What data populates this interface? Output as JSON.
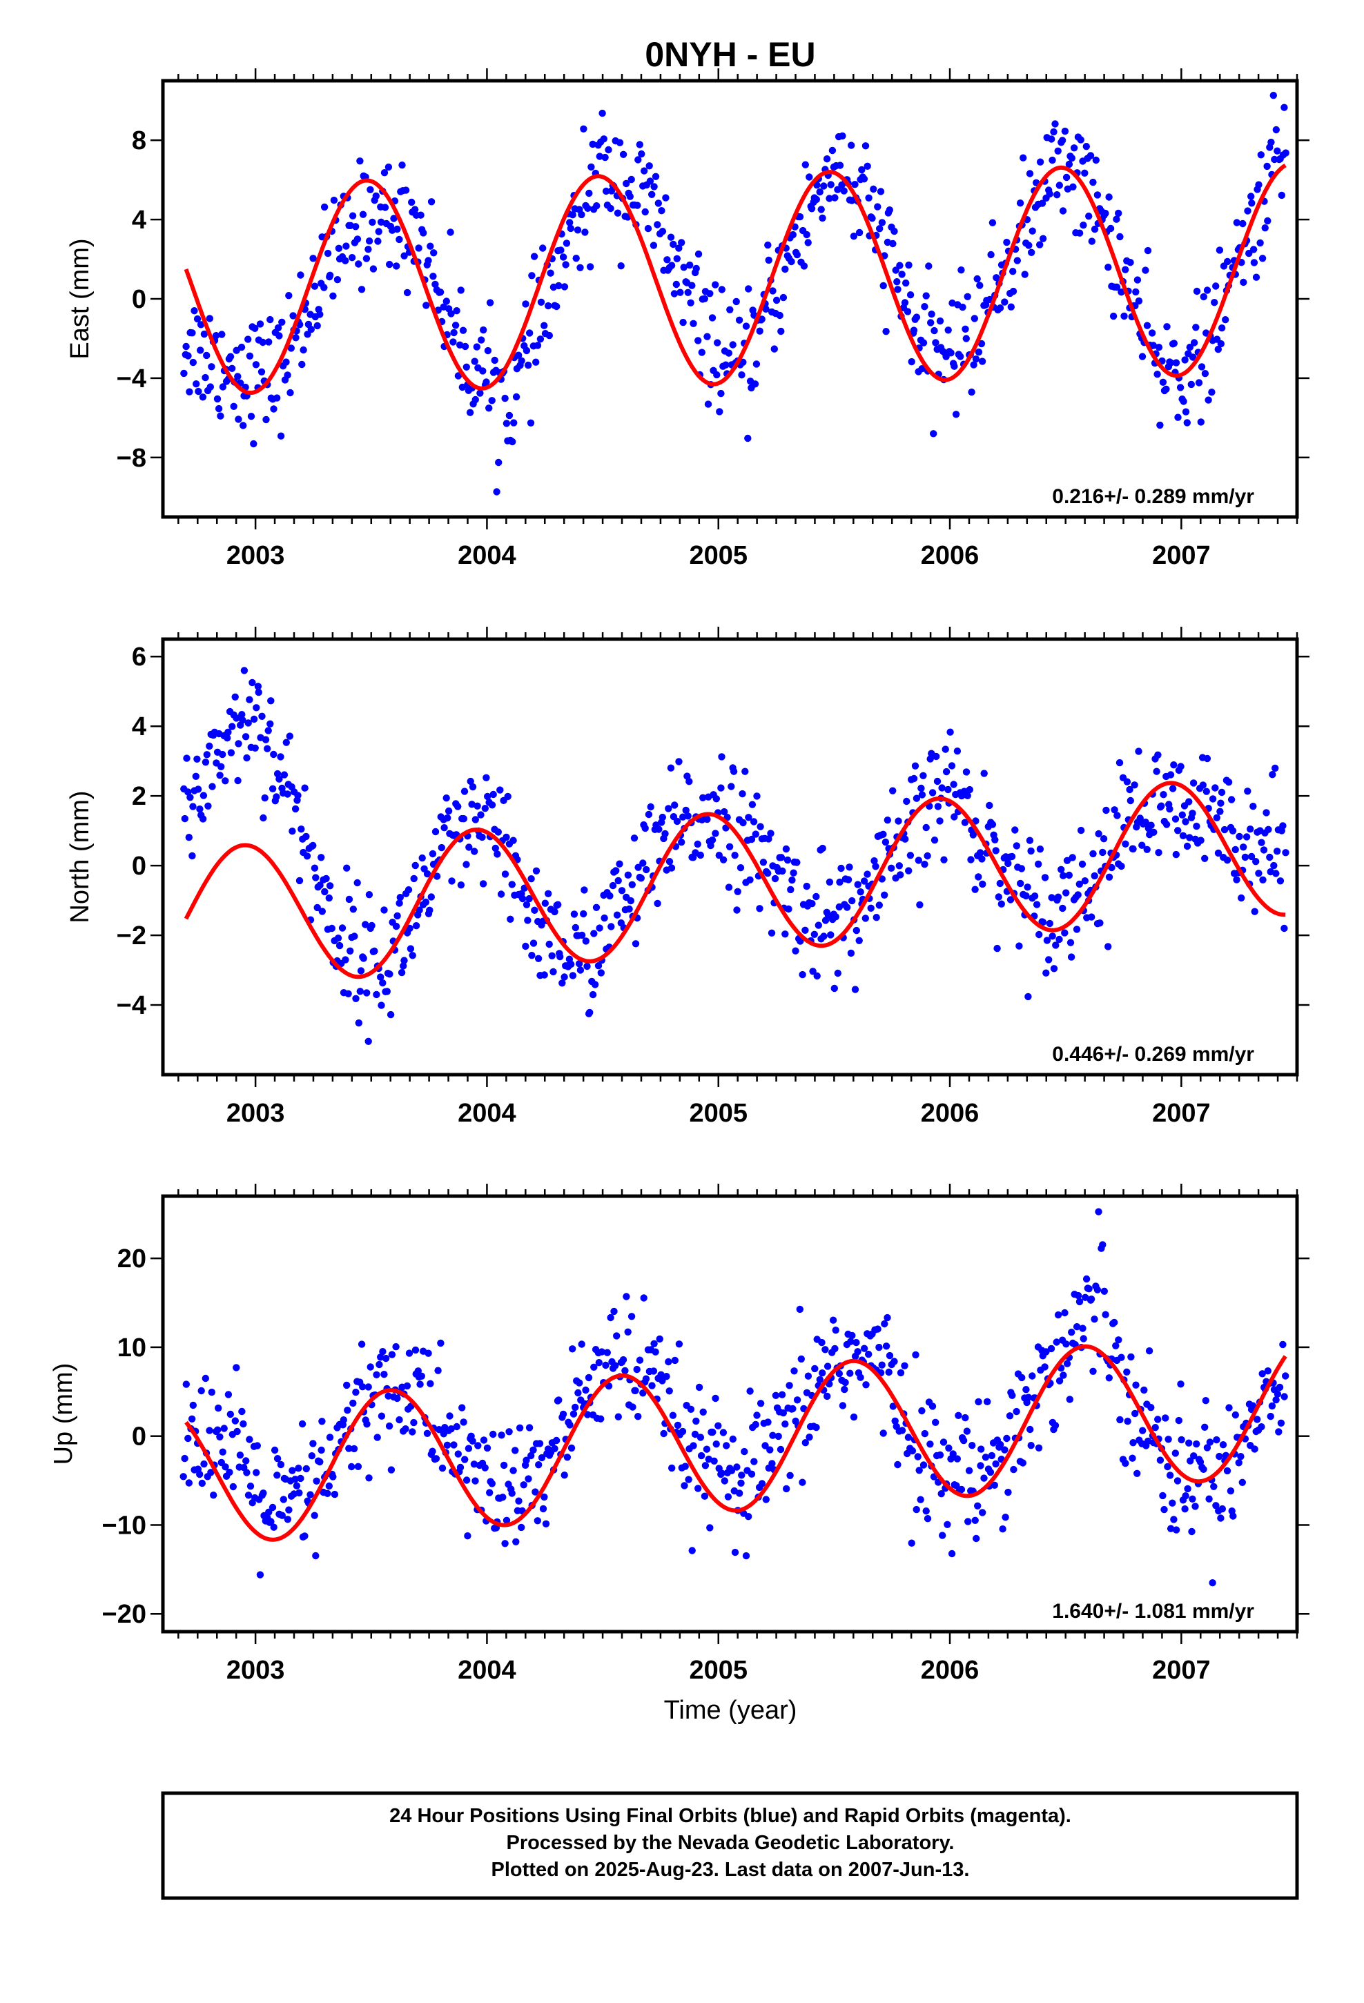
{
  "title": "0NYH - EU",
  "colors": {
    "points": "#0000ff",
    "fit": "#ff0000",
    "frame": "#000000",
    "background": "#ffffff"
  },
  "chart_data": [
    {
      "type": "scatter",
      "panel": "east",
      "ylabel": "East (mm)",
      "xlim": [
        2002.6,
        2007.5
      ],
      "ylim": [
        -11,
        11
      ],
      "xticks": [
        2003,
        2004,
        2005,
        2006,
        2007
      ],
      "xtick_labels": [
        "2003",
        "2004",
        "2005",
        "2006",
        "2007"
      ],
      "yticks": [
        -8,
        -4,
        0,
        4,
        8
      ],
      "ytick_labels": [
        "−8",
        "−4",
        "0",
        "4",
        "8"
      ],
      "rate_label": "0.216+/- 0.289 mm/yr",
      "series": [
        {
          "kind": "points",
          "x_range": [
            2002.69,
            2007.45
          ],
          "seasonal_mean": [
            [
              2002.7,
              -2.2
            ],
            [
              2002.9,
              -3.6
            ],
            [
              2003.1,
              -3.8
            ],
            [
              2003.3,
              1.5
            ],
            [
              2003.5,
              4.4
            ],
            [
              2003.7,
              3.6
            ],
            [
              2003.9,
              -2.8
            ],
            [
              2004.1,
              -5.2
            ],
            [
              2004.3,
              1.0
            ],
            [
              2004.5,
              6.8
            ],
            [
              2004.7,
              4.8
            ],
            [
              2004.9,
              -0.8
            ],
            [
              2005.1,
              -4.0
            ],
            [
              2005.3,
              2.0
            ],
            [
              2005.5,
              7.0
            ],
            [
              2005.7,
              3.4
            ],
            [
              2005.9,
              -3.0
            ],
            [
              2006.1,
              -1.8
            ],
            [
              2006.3,
              3.0
            ],
            [
              2006.5,
              7.4
            ],
            [
              2006.7,
              3.0
            ],
            [
              2006.9,
              -3.8
            ],
            [
              2007.1,
              -3.0
            ],
            [
              2007.3,
              3.5
            ],
            [
              2007.45,
              8.0
            ]
          ],
          "spread": 1.5
        },
        {
          "kind": "fit",
          "x": [
            2002.7,
            2007.45
          ],
          "start_value": 1.2,
          "amplitude": 5.3,
          "offset": 1.0,
          "phase_peak": 2003.48,
          "trend": 0.216
        }
      ]
    },
    {
      "type": "scatter",
      "panel": "north",
      "ylabel": "North (mm)",
      "xlim": [
        2002.6,
        2007.5
      ],
      "ylim": [
        -6,
        6.5
      ],
      "xticks": [
        2003,
        2004,
        2005,
        2006,
        2007
      ],
      "xtick_labels": [
        "2003",
        "2004",
        "2005",
        "2006",
        "2007"
      ],
      "yticks": [
        -4,
        -2,
        0,
        2,
        4,
        6
      ],
      "ytick_labels": [
        "−4",
        "−2",
        "0",
        "2",
        "4",
        "6"
      ],
      "rate_label": "0.446+/- 0.269 mm/yr",
      "series": [
        {
          "kind": "points",
          "x_range": [
            2002.69,
            2007.45
          ],
          "seasonal_mean": [
            [
              2002.7,
              1.5
            ],
            [
              2002.85,
              3.5
            ],
            [
              2003.0,
              4.5
            ],
            [
              2003.15,
              2.0
            ],
            [
              2003.35,
              -2.0
            ],
            [
              2003.55,
              -3.0
            ],
            [
              2003.8,
              0.2
            ],
            [
              2004.0,
              1.2
            ],
            [
              2004.2,
              -1.5
            ],
            [
              2004.4,
              -2.8
            ],
            [
              2004.6,
              -1.0
            ],
            [
              2004.8,
              0.8
            ],
            [
              2005.0,
              1.8
            ],
            [
              2005.2,
              0.0
            ],
            [
              2005.4,
              -1.5
            ],
            [
              2005.6,
              -1.4
            ],
            [
              2005.8,
              0.6
            ],
            [
              2006.0,
              2.4
            ],
            [
              2006.2,
              0.2
            ],
            [
              2006.4,
              -1.2
            ],
            [
              2006.6,
              -0.6
            ],
            [
              2006.8,
              1.6
            ],
            [
              2007.0,
              1.4
            ],
            [
              2007.2,
              1.2
            ],
            [
              2007.45,
              0.3
            ]
          ],
          "spread": 0.9
        },
        {
          "kind": "fit",
          "x": [
            2002.7,
            2007.45
          ],
          "start_value": -1.3,
          "amplitude": 2.0,
          "offset": -0.5,
          "phase_peak": 2002.95,
          "trend": 0.446
        }
      ]
    },
    {
      "type": "scatter",
      "panel": "up",
      "xlabel": "Time (year)",
      "ylabel": "Up (mm)",
      "xlim": [
        2002.6,
        2007.5
      ],
      "ylim": [
        -22,
        27
      ],
      "xticks": [
        2003,
        2004,
        2005,
        2006,
        2007
      ],
      "xtick_labels": [
        "2003",
        "2004",
        "2005",
        "2006",
        "2007"
      ],
      "yticks": [
        -20,
        -10,
        0,
        10,
        20
      ],
      "ytick_labels": [
        "−20",
        "−10",
        "0",
        "10",
        "20"
      ],
      "rate_label": "1.640+/- 1.081 mm/yr",
      "series": [
        {
          "kind": "points",
          "x_range": [
            2002.69,
            2007.45
          ],
          "seasonal_mean": [
            [
              2002.7,
              2.0
            ],
            [
              2002.9,
              -2.0
            ],
            [
              2003.1,
              -9.0
            ],
            [
              2003.3,
              -5.0
            ],
            [
              2003.5,
              5.0
            ],
            [
              2003.7,
              5.0
            ],
            [
              2003.9,
              -3.0
            ],
            [
              2004.1,
              -7.0
            ],
            [
              2004.3,
              -2.0
            ],
            [
              2004.5,
              9.0
            ],
            [
              2004.7,
              6.0
            ],
            [
              2004.9,
              -2.0
            ],
            [
              2005.1,
              -6.0
            ],
            [
              2005.3,
              0.0
            ],
            [
              2005.5,
              9.0
            ],
            [
              2005.7,
              8.0
            ],
            [
              2005.9,
              -3.0
            ],
            [
              2006.1,
              -5.0
            ],
            [
              2006.3,
              2.0
            ],
            [
              2006.5,
              10.0
            ],
            [
              2006.65,
              16.0
            ],
            [
              2006.8,
              3.0
            ],
            [
              2007.0,
              -5.0
            ],
            [
              2007.2,
              -3.0
            ],
            [
              2007.45,
              8.0
            ]
          ],
          "spread": 3.8
        },
        {
          "kind": "fit",
          "x": [
            2002.7,
            2007.45
          ],
          "start_value": 3.0,
          "amplitude": 8.0,
          "offset": -0.5,
          "phase_peak": 2003.58,
          "trend": 1.64
        }
      ]
    }
  ],
  "footer": {
    "line1": "24 Hour Positions Using Final Orbits (blue) and Rapid Orbits (magenta).",
    "line2": "Processed by the Nevada Geodetic Laboratory.",
    "line3": "Plotted on 2025-Aug-23. Last data on 2007-Jun-13."
  }
}
